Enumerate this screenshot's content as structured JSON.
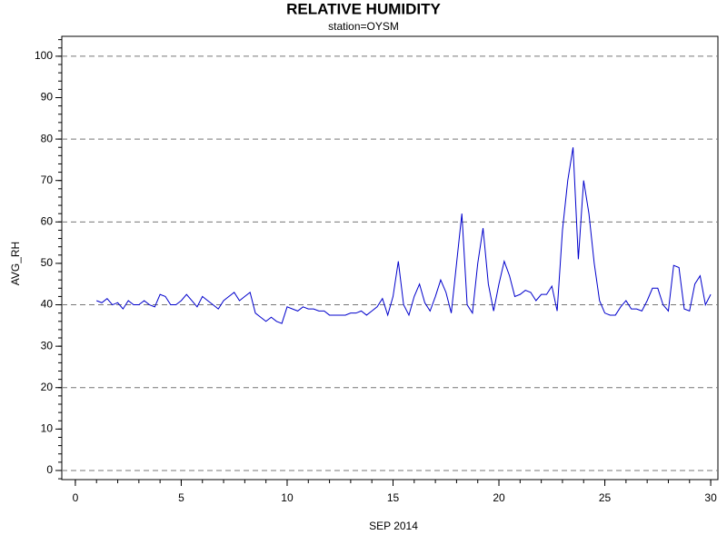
{
  "chart_data": {
    "type": "line",
    "title": "RELATIVE HUMIDITY",
    "subtitle": "station=OYSM",
    "x_label": "SEP 2014",
    "y_label": "AVG_RH",
    "xlim": [
      -0.64,
      30.34
    ],
    "ylim": [
      -2.2,
      104.8
    ],
    "xticks": [
      0,
      5,
      10,
      15,
      20,
      25,
      30
    ],
    "yticks": [
      0,
      10,
      20,
      30,
      40,
      50,
      60,
      70,
      80,
      90,
      100
    ],
    "x_minor_step": 1,
    "y_minor_step": 2,
    "grid_lines": [
      0,
      20,
      40,
      60,
      80,
      100
    ],
    "grid_style": "dashed",
    "x": [
      1.0,
      1.25,
      1.5,
      1.75,
      2.0,
      2.25,
      2.5,
      2.75,
      3.0,
      3.25,
      3.5,
      3.75,
      4.0,
      4.25,
      4.5,
      4.75,
      5.0,
      5.25,
      5.5,
      5.75,
      6.0,
      6.25,
      6.5,
      6.75,
      7.0,
      7.25,
      7.5,
      7.75,
      8.0,
      8.25,
      8.5,
      8.75,
      9.0,
      9.25,
      9.5,
      9.75,
      10.0,
      10.25,
      10.5,
      10.75,
      11.0,
      11.25,
      11.5,
      11.75,
      12.0,
      12.25,
      12.5,
      12.75,
      13.0,
      13.25,
      13.5,
      13.75,
      14.0,
      14.25,
      14.5,
      14.75,
      15.0,
      15.25,
      15.5,
      15.75,
      16.0,
      16.25,
      16.5,
      16.75,
      17.0,
      17.25,
      17.5,
      17.75,
      18.0,
      18.25,
      18.5,
      18.75,
      19.0,
      19.25,
      19.5,
      19.75,
      20.0,
      20.25,
      20.5,
      20.75,
      21.0,
      21.25,
      21.5,
      21.75,
      22.0,
      22.25,
      22.5,
      22.75,
      23.0,
      23.25,
      23.5,
      23.75,
      24.0,
      24.25,
      24.5,
      24.75,
      25.0,
      25.25,
      25.5,
      25.75,
      26.0,
      26.25,
      26.5,
      26.75,
      27.0,
      27.25,
      27.5,
      27.75,
      28.0,
      28.25,
      28.5,
      28.75,
      29.0,
      29.25,
      29.5,
      29.75,
      30.0
    ],
    "series": [
      {
        "name": "AVG_RH",
        "color": "#0000cc",
        "values": [
          41,
          40.5,
          41.5,
          40,
          40.5,
          39,
          41,
          40,
          40,
          41,
          40,
          39.5,
          42.5,
          42,
          40,
          40,
          41,
          42.5,
          41,
          39.5,
          42,
          41,
          40,
          39,
          41,
          42,
          43,
          41,
          42,
          43,
          38,
          37,
          36,
          37,
          36,
          35.5,
          39.5,
          39,
          38.5,
          39.5,
          39,
          39,
          38.5,
          38.5,
          37.5,
          37.5,
          37.5,
          37.5,
          38,
          38,
          38.5,
          37.5,
          38.5,
          39.5,
          41.5,
          37.5,
          42,
          50.5,
          40,
          37.5,
          42,
          45,
          40.5,
          38.5,
          42,
          46,
          43,
          38,
          50,
          62,
          40,
          38,
          50,
          58.5,
          45,
          38.5,
          45,
          50.5,
          47,
          42,
          42.5,
          43.5,
          43,
          41,
          42.5,
          42.5,
          44.5,
          38.5,
          58,
          70,
          78,
          51,
          70,
          62,
          50,
          41,
          38,
          37.5,
          37.5,
          39.5,
          41,
          39,
          39,
          38.5,
          41,
          44,
          44,
          40,
          38.5,
          49.5,
          49,
          39,
          38.5,
          45,
          47,
          40,
          42.5
        ]
      }
    ]
  }
}
